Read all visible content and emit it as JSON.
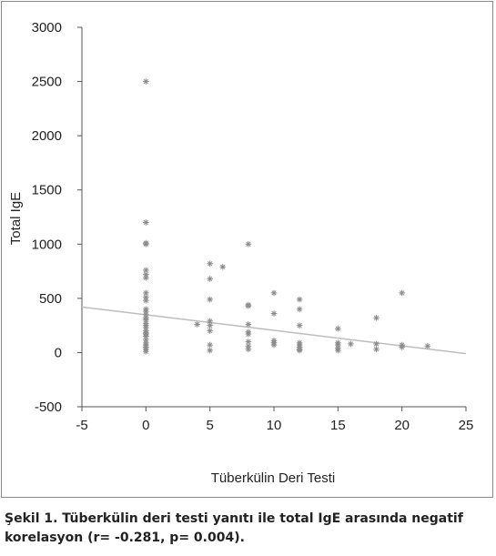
{
  "chart_data": {
    "type": "scatter",
    "xlabel": "Tüberkülin Deri Testi",
    "ylabel": "Total IgE",
    "xlim": [
      -5,
      25
    ],
    "ylim": [
      -500,
      3000
    ],
    "x_ticks": [
      "-5",
      "0",
      "5",
      "10",
      "15",
      "20",
      "25"
    ],
    "y_ticks": [
      "-500",
      "0",
      "500",
      "1000",
      "1500",
      "2000",
      "2500",
      "3000"
    ],
    "grid": false,
    "marker": "asterisk",
    "color": "#8c8c8c",
    "points": [
      [
        0,
        2500
      ],
      [
        0,
        1200
      ],
      [
        0,
        1010
      ],
      [
        0,
        1000
      ],
      [
        0,
        760
      ],
      [
        0,
        720
      ],
      [
        0,
        690
      ],
      [
        0,
        550
      ],
      [
        0,
        510
      ],
      [
        0,
        480
      ],
      [
        0,
        400
      ],
      [
        0,
        380
      ],
      [
        0,
        350
      ],
      [
        0,
        320
      ],
      [
        0,
        300
      ],
      [
        0,
        270
      ],
      [
        0,
        250
      ],
      [
        0,
        230
      ],
      [
        0,
        200
      ],
      [
        0,
        180
      ],
      [
        0,
        170
      ],
      [
        0,
        150
      ],
      [
        0,
        120
      ],
      [
        0,
        90
      ],
      [
        0,
        70
      ],
      [
        0,
        50
      ],
      [
        0,
        30
      ],
      [
        0,
        10
      ],
      [
        4,
        260
      ],
      [
        5,
        820
      ],
      [
        5,
        680
      ],
      [
        5,
        490
      ],
      [
        5,
        290
      ],
      [
        5,
        250
      ],
      [
        5,
        200
      ],
      [
        5,
        70
      ],
      [
        5,
        20
      ],
      [
        6,
        790
      ],
      [
        8,
        1000
      ],
      [
        8,
        440
      ],
      [
        8,
        430
      ],
      [
        8,
        260
      ],
      [
        8,
        190
      ],
      [
        8,
        170
      ],
      [
        8,
        100
      ],
      [
        8,
        60
      ],
      [
        8,
        30
      ],
      [
        10,
        550
      ],
      [
        10,
        360
      ],
      [
        10,
        110
      ],
      [
        10,
        90
      ],
      [
        10,
        70
      ],
      [
        12,
        490
      ],
      [
        12,
        400
      ],
      [
        12,
        250
      ],
      [
        12,
        90
      ],
      [
        12,
        70
      ],
      [
        12,
        50
      ],
      [
        12,
        30
      ],
      [
        12,
        20
      ],
      [
        15,
        220
      ],
      [
        15,
        90
      ],
      [
        15,
        70
      ],
      [
        15,
        40
      ],
      [
        15,
        20
      ],
      [
        16,
        80
      ],
      [
        18,
        320
      ],
      [
        18,
        80
      ],
      [
        18,
        30
      ],
      [
        20,
        550
      ],
      [
        20,
        70
      ],
      [
        20,
        50
      ],
      [
        22,
        60
      ]
    ],
    "trendline": {
      "x": [
        -5,
        25
      ],
      "y": [
        420,
        -10
      ]
    }
  },
  "caption": "Şekil 1. Tüberkülin deri testi yanıtı ile total IgE arasında negatif korelasyon (r= -0.281, p= 0.004)."
}
